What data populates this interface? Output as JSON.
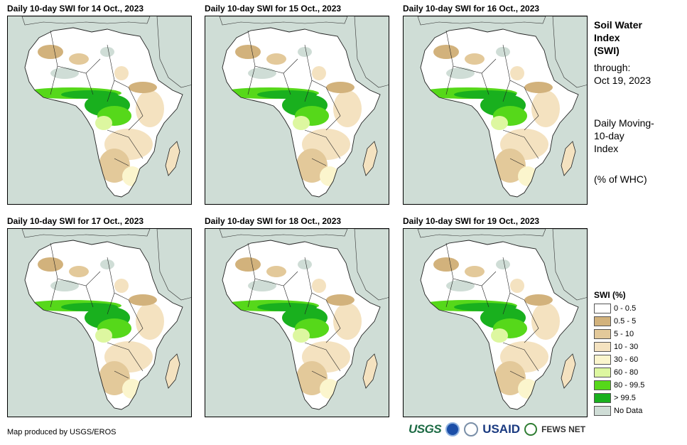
{
  "panels": [
    {
      "title": "Daily 10-day  SWI for 14 Oct., 2023"
    },
    {
      "title": "Daily 10-day  SWI for 15 Oct., 2023"
    },
    {
      "title": "Daily 10-day  SWI for 16 Oct., 2023"
    },
    {
      "title": "Daily 10-day  SWI for 17 Oct., 2023"
    },
    {
      "title": "Daily 10-day  SWI for 18 Oct., 2023"
    },
    {
      "title": "Daily 10-day  SWI for 19 Oct., 2023"
    }
  ],
  "sidebar": {
    "title_line1": "Soil Water",
    "title_line2": "Index",
    "title_line3": "(SWI)",
    "through_label": "through:",
    "through_date": "Oct 19, 2023",
    "desc_line1": "Daily Moving-",
    "desc_line2": "10-day",
    "desc_line3": "Index",
    "units": "(% of WHC)"
  },
  "legend": {
    "title": "SWI (%)",
    "items": [
      {
        "label": "0 - 0.5",
        "color": "#ffffff"
      },
      {
        "label": "0.5 - 5",
        "color": "#d2b27c"
      },
      {
        "label": "5 - 10",
        "color": "#e3c99a"
      },
      {
        "label": "10 - 30",
        "color": "#f4e2c0"
      },
      {
        "label": "30 - 60",
        "color": "#fbf5cd"
      },
      {
        "label": "60 - 80",
        "color": "#ddf7a0"
      },
      {
        "label": "80 - 99.5",
        "color": "#56d81a"
      },
      {
        "label": "> 99.5",
        "color": "#19b01e"
      },
      {
        "label": "No Data",
        "color": "#cfddd6"
      }
    ]
  },
  "footer": {
    "credit": "Map produced by USGS/EROS"
  },
  "logos": {
    "usgs": "USGS",
    "usaid": "USAID",
    "fews": "FEWS NET"
  }
}
